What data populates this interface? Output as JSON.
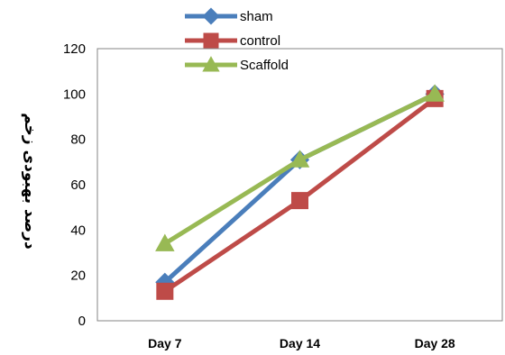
{
  "chart_data": {
    "type": "line",
    "categories": [
      "Day 7",
      "Day 14",
      "Day 28"
    ],
    "series": [
      {
        "name": "sham",
        "color": "#4a7ebb",
        "marker": "diamond",
        "values": [
          17,
          71,
          100
        ]
      },
      {
        "name": "control",
        "color": "#be4b48",
        "marker": "square",
        "values": [
          13,
          53,
          98
        ]
      },
      {
        "name": "Scaffold",
        "color": "#98b954",
        "marker": "triangle",
        "values": [
          34,
          71,
          100
        ]
      }
    ],
    "yticks": [
      0,
      20,
      40,
      60,
      80,
      100,
      120
    ],
    "ylim": [
      0,
      120
    ],
    "xlabel": "",
    "ylabel": "درصد بهبودی زخم",
    "legend_position": "top",
    "grid": false
  }
}
